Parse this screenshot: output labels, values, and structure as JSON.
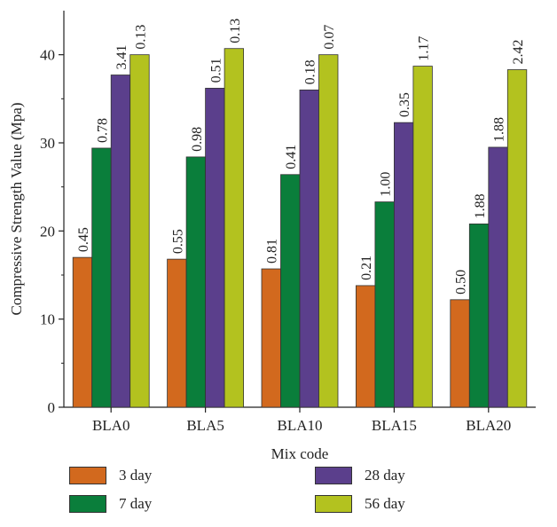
{
  "chart_data": {
    "type": "bar",
    "xlabel": "Mix code",
    "ylabel": "Compressive Strength Value (Mpa)",
    "ylim": [
      0,
      45
    ],
    "yticks": [
      "0",
      "10",
      "20",
      "30",
      "40"
    ],
    "categories": [
      "BLA0",
      "BLA5",
      "BLA10",
      "BLA15",
      "BLA20"
    ],
    "series": [
      {
        "name": "3 day",
        "color": "#d2691e",
        "values": [
          17.0,
          16.8,
          15.7,
          13.8,
          12.2
        ],
        "labels": [
          "0.45",
          "0.55",
          "0.81",
          "0.21",
          "0.50"
        ]
      },
      {
        "name": "7 day",
        "color": "#0a7e3b",
        "values": [
          29.4,
          28.4,
          26.4,
          23.3,
          20.8
        ],
        "labels": [
          "0.78",
          "0.98",
          "0.41",
          "1.00",
          "1.88"
        ]
      },
      {
        "name": "28 day",
        "color": "#5b3f8c",
        "values": [
          37.7,
          36.2,
          36.0,
          32.3,
          29.5
        ],
        "labels": [
          "3.41",
          "0.51",
          "0.18",
          "0.35",
          "1.88"
        ]
      },
      {
        "name": "56 day",
        "color": "#b3c21f",
        "values": [
          40.0,
          40.7,
          40.0,
          38.7,
          38.3
        ],
        "labels": [
          "0.13",
          "0.13",
          "0.07",
          "1.17",
          "2.42"
        ]
      }
    ],
    "legend_position": "bottom"
  }
}
